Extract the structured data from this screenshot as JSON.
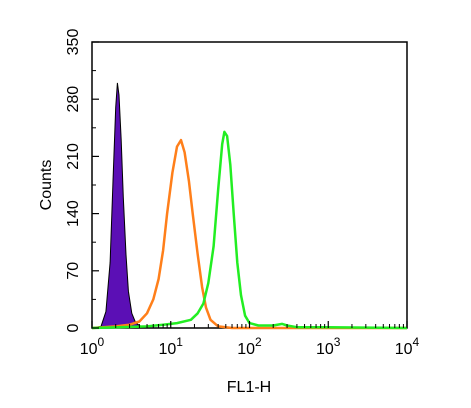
{
  "chart_data": {
    "type": "line",
    "x_scale": "log",
    "xlim": [
      1,
      10000
    ],
    "ylim": [
      0,
      350
    ],
    "xlabel": "FL1-H",
    "ylabel": "Counts",
    "x_tick_labels": [
      {
        "base": "10",
        "exp": "0"
      },
      {
        "base": "10",
        "exp": "1"
      },
      {
        "base": "10",
        "exp": "2"
      },
      {
        "base": "10",
        "exp": "3"
      },
      {
        "base": "10",
        "exp": "4"
      }
    ],
    "x_ticks": [
      1,
      10,
      100,
      1000,
      10000
    ],
    "y_ticks": [
      0,
      70,
      140,
      210,
      280,
      350
    ],
    "y_tick_labels": [
      "0",
      "70",
      "140",
      "210",
      "280",
      "350"
    ],
    "series": [
      {
        "color": "#5b0fb5",
        "fill": true,
        "points": [
          [
            1.0,
            0
          ],
          [
            1.3,
            2
          ],
          [
            1.5,
            20
          ],
          [
            1.7,
            80
          ],
          [
            1.85,
            180
          ],
          [
            2.0,
            270
          ],
          [
            2.1,
            300
          ],
          [
            2.2,
            285
          ],
          [
            2.35,
            230
          ],
          [
            2.5,
            160
          ],
          [
            2.7,
            90
          ],
          [
            2.9,
            45
          ],
          [
            3.2,
            18
          ],
          [
            3.6,
            6
          ],
          [
            4.2,
            2
          ],
          [
            5.0,
            0
          ]
        ]
      },
      {
        "color": "#ff7f1a",
        "fill": false,
        "points": [
          [
            1.0,
            0
          ],
          [
            2.0,
            2
          ],
          [
            3.0,
            4
          ],
          [
            4.0,
            8
          ],
          [
            5.0,
            18
          ],
          [
            6.0,
            35
          ],
          [
            7.0,
            60
          ],
          [
            8.0,
            95
          ],
          [
            9.0,
            140
          ],
          [
            10.5,
            190
          ],
          [
            12.0,
            222
          ],
          [
            13.5,
            230
          ],
          [
            15.0,
            215
          ],
          [
            17.0,
            180
          ],
          [
            19.0,
            140
          ],
          [
            22.0,
            90
          ],
          [
            25.0,
            50
          ],
          [
            28.0,
            25
          ],
          [
            32.0,
            10
          ],
          [
            40.0,
            2
          ],
          [
            60.0,
            0
          ],
          [
            10000,
            0
          ]
        ]
      },
      {
        "color": "#22ee22",
        "fill": false,
        "points": [
          [
            1.0,
            0
          ],
          [
            5.0,
            2
          ],
          [
            8.0,
            4
          ],
          [
            12.0,
            6
          ],
          [
            18.0,
            10
          ],
          [
            22.0,
            18
          ],
          [
            26.0,
            30
          ],
          [
            30.0,
            55
          ],
          [
            35.0,
            100
          ],
          [
            40.0,
            170
          ],
          [
            45.0,
            225
          ],
          [
            48.0,
            240
          ],
          [
            52.0,
            235
          ],
          [
            57.0,
            200
          ],
          [
            63.0,
            140
          ],
          [
            70.0,
            80
          ],
          [
            78.0,
            40
          ],
          [
            88.0,
            15
          ],
          [
            100.0,
            6
          ],
          [
            130.0,
            3
          ],
          [
            200.0,
            3
          ],
          [
            260.0,
            5
          ],
          [
            300.0,
            3
          ],
          [
            400.0,
            1
          ],
          [
            1000.0,
            1
          ],
          [
            10000,
            0
          ]
        ]
      }
    ]
  }
}
